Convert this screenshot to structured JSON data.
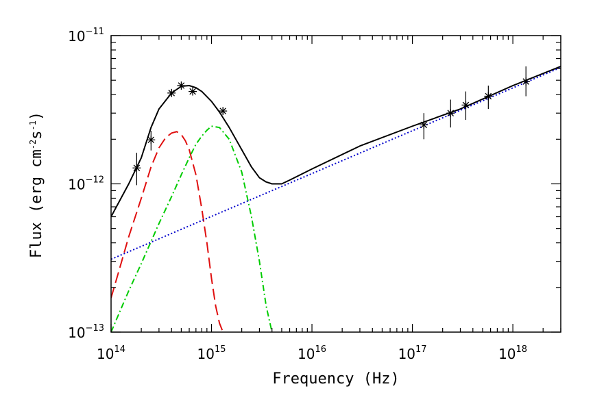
{
  "chart_data": {
    "type": "scatter",
    "title": "",
    "xlabel": "Frequency (Hz)",
    "ylabel": {
      "prefix": "Flux (erg cm",
      "exp1": "-2",
      "mid": "s",
      "exp2": "-1",
      "suffix": ")"
    },
    "x_scale": "log",
    "y_scale": "log",
    "xlim": [
      100000000000000.0,
      3e+18
    ],
    "ylim": [
      1e-13,
      1e-11
    ],
    "x_tick_labels": [
      {
        "base": "10",
        "exp": "14",
        "value": 100000000000000.0
      },
      {
        "base": "10",
        "exp": "15",
        "value": 1000000000000000.0
      },
      {
        "base": "10",
        "exp": "16",
        "value": 1e+16
      },
      {
        "base": "10",
        "exp": "17",
        "value": 1e+17
      },
      {
        "base": "10",
        "exp": "18",
        "value": 1e+18
      }
    ],
    "y_tick_labels": [
      {
        "base": "10",
        "exp": "−13",
        "value": 1e-13
      },
      {
        "base": "10",
        "exp": "−12",
        "value": 1e-12
      },
      {
        "base": "10",
        "exp": "−11",
        "value": 1e-11
      }
    ],
    "grid": false,
    "legend": "none",
    "series": [
      {
        "style": "scatter-with-errorbars",
        "color": "#000000",
        "marker": "asterisk",
        "points": [
          {
            "x": 180000000000000.0,
            "y": 1.28e-12,
            "ylo": 9.8e-13,
            "yhi": 1.62e-12
          },
          {
            "x": 250000000000000.0,
            "y": 1.98e-12,
            "ylo": 1.68e-12,
            "yhi": 2.28e-12
          },
          {
            "x": 400000000000000.0,
            "y": 4.1e-12,
            "ylo": 3.95e-12,
            "yhi": 4.25e-12
          },
          {
            "x": 500000000000000.0,
            "y": 4.6e-12,
            "ylo": 4.45e-12,
            "yhi": 4.75e-12
          },
          {
            "x": 650000000000000.0,
            "y": 4.2e-12,
            "ylo": 4.05e-12,
            "yhi": 4.35e-12
          },
          {
            "x": 1300000000000000.0,
            "y": 3.1e-12,
            "ylo": 2.95e-12,
            "yhi": 3.25e-12
          },
          {
            "x": 1.3e+17,
            "y": 2.5e-12,
            "ylo": 2e-12,
            "yhi": 3e-12
          },
          {
            "x": 2.4e+17,
            "y": 3e-12,
            "ylo": 2.4e-12,
            "yhi": 3.7e-12
          },
          {
            "x": 3.4e+17,
            "y": 3.4e-12,
            "ylo": 2.7e-12,
            "yhi": 4.2e-12
          },
          {
            "x": 5.7e+17,
            "y": 3.9e-12,
            "ylo": 3.2e-12,
            "yhi": 4.6e-12
          },
          {
            "x": 1.35e+18,
            "y": 4.9e-12,
            "ylo": 3.9e-12,
            "yhi": 6.2e-12
          }
        ]
      },
      {
        "style": "solid",
        "color": "#000000",
        "x": [
          100000000000000.0,
          150000000000000.0,
          200000000000000.0,
          250000000000000.0,
          300000000000000.0,
          400000000000000.0,
          500000000000000.0,
          600000000000000.0,
          700000000000000.0,
          800000000000000.0,
          1000000000000000.0,
          1200000000000000.0,
          1500000000000000.0,
          2000000000000000.0,
          2500000000000000.0,
          3000000000000000.0,
          3500000000000000.0,
          4000000000000000.0,
          4500000000000000.0,
          5000000000000000.0,
          6000000000000000.0,
          1e+16,
          3e+16,
          1e+17,
          3e+17,
          1e+18,
          3e+18
        ],
        "y": [
          6e-13,
          1e-12,
          1.5e-12,
          2.4e-12,
          3.2e-12,
          4.1e-12,
          4.55e-12,
          4.6e-12,
          4.45e-12,
          4.2e-12,
          3.6e-12,
          3.05e-12,
          2.4e-12,
          1.7e-12,
          1.3e-12,
          1.1e-12,
          1.03e-12,
          1e-12,
          1e-12,
          1e-12,
          1.06e-12,
          1.26e-12,
          1.8e-12,
          2.45e-12,
          3.2e-12,
          4.6e-12,
          6.2e-12
        ]
      },
      {
        "style": "dashed",
        "color": "#e01010",
        "x": [
          100000000000000.0,
          120000000000000.0,
          150000000000000.0,
          200000000000000.0,
          250000000000000.0,
          300000000000000.0,
          350000000000000.0,
          400000000000000.0,
          450000000000000.0,
          500000000000000.0,
          550000000000000.0,
          600000000000000.0,
          700000000000000.0,
          800000000000000.0,
          900000000000000.0,
          1000000000000000.0,
          1100000000000000.0,
          1200000000000000.0,
          1300000000000000.0
        ],
        "y": [
          1.7e-13,
          2.6e-13,
          4.4e-13,
          8e-13,
          1.3e-12,
          1.75e-12,
          2.05e-12,
          2.2e-12,
          2.25e-12,
          2.15e-12,
          1.95e-12,
          1.7e-12,
          1.15e-12,
          6.8e-13,
          4e-13,
          2.3e-13,
          1.5e-13,
          1.15e-13,
          1e-13
        ]
      },
      {
        "style": "dashdot",
        "color": "#00cc00",
        "x": [
          100000000000000.0,
          150000000000000.0,
          200000000000000.0,
          300000000000000.0,
          400000000000000.0,
          500000000000000.0,
          600000000000000.0,
          700000000000000.0,
          800000000000000.0,
          900000000000000.0,
          1000000000000000.0,
          1200000000000000.0,
          1500000000000000.0,
          2000000000000000.0,
          2500000000000000.0,
          3000000000000000.0,
          3500000000000000.0,
          4000000000000000.0
        ],
        "y": [
          1e-13,
          1.9e-13,
          2.9e-13,
          5.4e-13,
          8.2e-13,
          1.15e-12,
          1.5e-12,
          1.85e-12,
          2.1e-12,
          2.3e-12,
          2.45e-12,
          2.4e-12,
          2e-12,
          1.2e-12,
          6e-13,
          3e-13,
          1.5e-13,
          1e-13
        ]
      },
      {
        "style": "dotted",
        "color": "#0000cc",
        "x": [
          100000000000000.0,
          3e+18
        ],
        "y": [
          3.1e-13,
          6.1e-12
        ]
      }
    ]
  }
}
